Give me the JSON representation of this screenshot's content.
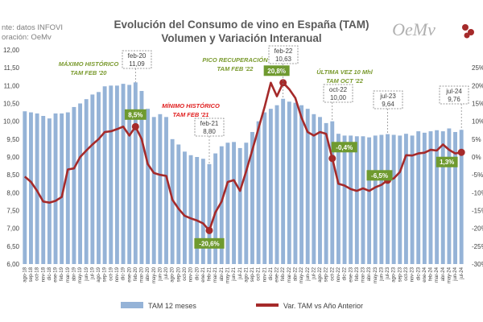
{
  "header": {
    "title_line1": "Evolución del Consumo de vino en España (TAM)",
    "title_line2": "Volumen y Variación Interanual",
    "source_line1": "nte: datos INFOVI",
    "source_line2": "oración: OeMv",
    "logo_text": "OeMv"
  },
  "colors": {
    "bar": "#95b3d7",
    "line": "#a52a2a",
    "green_label": "#6f9a2f",
    "annot_green": "#7a9a2e",
    "annot_red": "#e02020"
  },
  "chart_data": {
    "type": "bar",
    "categories": [
      "ago-18",
      "sep-18",
      "oct-18",
      "nov-18",
      "dic-18",
      "ene-19",
      "feb-19",
      "mar-19",
      "abr-19",
      "may-19",
      "jun-19",
      "jul-19",
      "ago-19",
      "sep-19",
      "oct-19",
      "nov-19",
      "dic-19",
      "ene-20",
      "feb-20",
      "mar-20",
      "abr-20",
      "may-20",
      "jun-20",
      "jul-20",
      "ago-20",
      "sep-20",
      "oct-20",
      "nov-20",
      "dic-20",
      "ene-21",
      "feb-21",
      "mar-21",
      "abr-21",
      "may-21",
      "jun-21",
      "jul-21",
      "ago-21",
      "sep-21",
      "oct-21",
      "nov-21",
      "dic-21",
      "ene-22",
      "feb-22",
      "mar-22",
      "abr-22",
      "may-22",
      "jun-22",
      "jul-22",
      "ago-22",
      "sep-22",
      "oct-22",
      "nov-22",
      "dic-22",
      "ene-23",
      "feb-23",
      "mar-23",
      "abr-23",
      "may-23",
      "jun-23",
      "jul-23",
      "ago-23",
      "sep-23",
      "oct-23",
      "nov-23",
      "dic-23",
      "ene-24",
      "feb-24",
      "mar-24",
      "abr-24",
      "may-24",
      "jun-24",
      "jul-24"
    ],
    "series": [
      {
        "name": "TAM 12 meses",
        "type": "bar",
        "axis": "left",
        "values": [
          10.28,
          10.25,
          10.22,
          10.15,
          10.08,
          10.22,
          10.22,
          10.25,
          10.4,
          10.5,
          10.62,
          10.75,
          10.82,
          10.98,
          11.0,
          11.0,
          11.05,
          11.02,
          11.09,
          10.85,
          10.35,
          10.12,
          10.2,
          10.12,
          9.5,
          9.35,
          9.15,
          9.05,
          9.0,
          8.95,
          8.8,
          9.1,
          9.3,
          9.4,
          9.42,
          9.25,
          9.4,
          9.7,
          10.0,
          10.25,
          10.35,
          10.45,
          10.63,
          10.55,
          10.52,
          10.45,
          10.35,
          10.2,
          10.12,
          9.95,
          10.0,
          9.65,
          9.6,
          9.6,
          9.58,
          9.58,
          9.55,
          9.6,
          9.62,
          9.64,
          9.62,
          9.6,
          9.65,
          9.6,
          9.72,
          9.68,
          9.72,
          9.75,
          9.72,
          9.8,
          9.7,
          9.76
        ]
      },
      {
        "name": "Var. TAM vs Año Anterior",
        "type": "line",
        "axis": "right",
        "values": [
          -5.5,
          -7.0,
          -9.5,
          -12.5,
          -12.8,
          -12.3,
          -11.2,
          -3.5,
          -3.2,
          0.0,
          1.8,
          3.5,
          5.0,
          7.0,
          7.2,
          7.8,
          8.5,
          6.0,
          8.5,
          5.0,
          -2.0,
          -4.5,
          -5.0,
          -5.3,
          -12.0,
          -14.5,
          -16.5,
          -17.2,
          -17.8,
          -18.6,
          -20.6,
          -15.5,
          -12.5,
          -7.0,
          -6.5,
          -9.5,
          -4.0,
          2.0,
          8.0,
          14.0,
          20.8,
          17.0,
          20.8,
          19.0,
          16.5,
          11.0,
          7.0,
          6.0,
          7.0,
          6.5,
          -0.4,
          -7.5,
          -8.0,
          -9.0,
          -9.5,
          -8.8,
          -9.5,
          -8.5,
          -7.8,
          -6.5,
          -6.0,
          -4.2,
          0.5,
          0.4,
          1.0,
          1.2,
          2.0,
          1.8,
          3.5,
          2.0,
          1.0,
          1.3
        ]
      }
    ],
    "left_axis": {
      "min": 6.0,
      "max": 12.0,
      "step": 0.5,
      "tick_labels": [
        "6,00",
        "6,50",
        "7,00",
        "7,50",
        "8,00",
        "8,50",
        "9,00",
        "9,50",
        "10,00",
        "10,50",
        "11,00",
        "11,50",
        "12,00"
      ]
    },
    "right_axis": {
      "min": -30,
      "max": 30,
      "step": 5,
      "tick_labels": [
        "-30%",
        "-25%",
        "-20%",
        "-15%",
        "-10%",
        "-5%",
        "0%",
        "5%",
        "10%",
        "15%",
        "20%",
        "25%"
      ]
    },
    "grid": false,
    "legend_position": "bottom",
    "line_data_labels": [
      {
        "index": 18,
        "text": "8,5%"
      },
      {
        "index": 30,
        "text": "-20,6%"
      },
      {
        "index": 42,
        "text": "20,8%"
      },
      {
        "index": 50,
        "text": "-0,4%"
      },
      {
        "index": 59,
        "text": "-6,5%"
      },
      {
        "index": 71,
        "text": "1,3%"
      }
    ],
    "bar_callouts": [
      {
        "index": 18,
        "label": "feb-20",
        "value": "11,09"
      },
      {
        "index": 30,
        "label": "feb-21",
        "value": "8,80"
      },
      {
        "index": 42,
        "label": "feb-22",
        "value": "10,63"
      },
      {
        "index": 50,
        "label": "oct-22",
        "value": "10,00"
      },
      {
        "index": 59,
        "label": "jul-23",
        "value": "9,64"
      },
      {
        "index": 71,
        "label": "jul-24",
        "value": "9,76"
      }
    ],
    "annotations": [
      {
        "lines": [
          "MÁXIMO HISTÓRICO",
          "TAM FEB '20"
        ],
        "style": "green"
      },
      {
        "lines": [
          "MÍNIMO HISTÓRICO",
          "TAM FEB '21"
        ],
        "style": "red"
      },
      {
        "lines": [
          "PICO RECUPERACIÓN",
          "TAM FEB '22"
        ],
        "style": "green"
      },
      {
        "lines": [
          "ÚLTIMA VEZ 10 Mhl",
          "TAM OCT '22"
        ],
        "style": "green"
      }
    ]
  }
}
